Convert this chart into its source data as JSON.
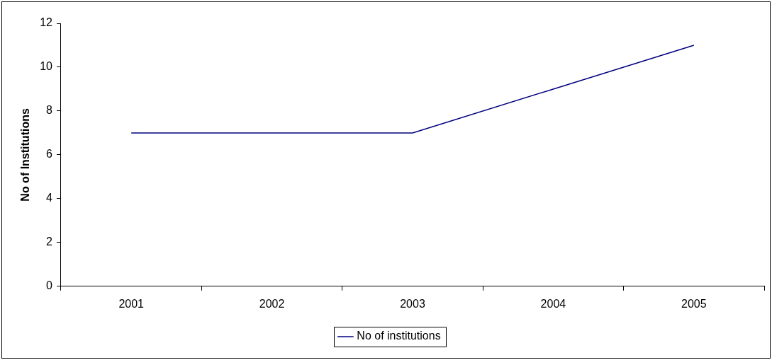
{
  "chart_data": {
    "type": "line",
    "ylabel": "No of Institutions",
    "categories": [
      "2001",
      "2002",
      "2003",
      "2004",
      "2005"
    ],
    "series": [
      {
        "name": "No of institutions",
        "color": "#000080",
        "values": [
          7,
          7,
          7,
          9,
          11
        ]
      }
    ],
    "ylim": [
      0,
      12
    ],
    "yticks": [
      0,
      2,
      4,
      6,
      8,
      10,
      12
    ],
    "grid": false,
    "legend": "bottom",
    "marker": "none",
    "line_style": "solid"
  }
}
